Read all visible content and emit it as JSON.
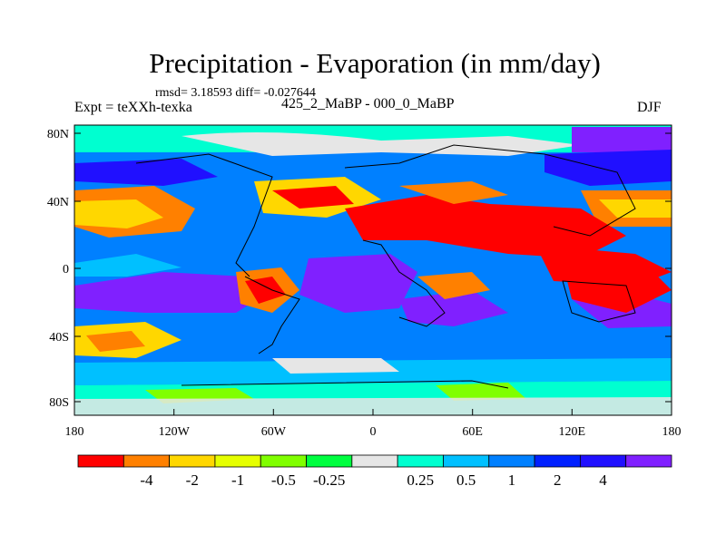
{
  "title": "Precipitation - Evaporation (in mm/day)",
  "stats": "rmsd= 3.18593 diff= -0.027644",
  "experiment": "Expt = teXXh-texka",
  "period": "425_2_MaBP - 000_0_MaBP",
  "season": "DJF",
  "lat_labels": [
    "80N",
    "40N",
    "0",
    "40S",
    "80S"
  ],
  "lon_labels": [
    "180",
    "120W",
    "60W",
    "0",
    "60E",
    "120E",
    "180"
  ],
  "colorbar": {
    "colors": [
      "#ff0000",
      "#ff8000",
      "#ffd700",
      "#e6ff00",
      "#80ff00",
      "#00ff40",
      "#e6e6e6",
      "#00ffd0",
      "#00c0ff",
      "#0080ff",
      "#0020ff",
      "#2010ff",
      "#8020ff"
    ],
    "labels": [
      "-4",
      "-2",
      "-1",
      "-0.5",
      "-0.25",
      "0.25",
      "0.5",
      "1",
      "2",
      "4"
    ]
  },
  "map_colors": {
    "ocean_wet": "#2010ff",
    "ocean_mid": "#0080ff",
    "ocean_cyan": "#00c0ff",
    "dry_red": "#ff0000",
    "dry_orange": "#ff8000",
    "yellow": "#ffd700",
    "green": "#80ff00",
    "neutral": "#e6e6e6",
    "purple": "#8020ff"
  }
}
